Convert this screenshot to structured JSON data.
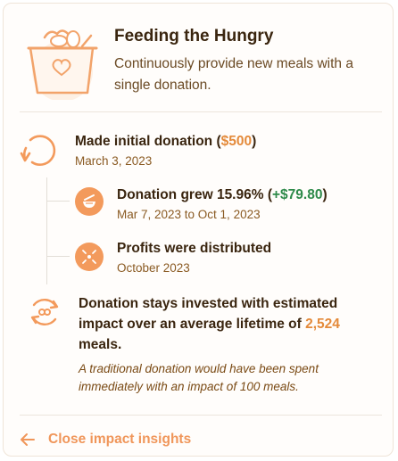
{
  "header": {
    "title": "Feeding the Hungry",
    "subtitle": "Continuously provide new meals with a single donation.",
    "illustration_icon": "food-basket-heart-icon"
  },
  "timeline": {
    "initial": {
      "title_prefix": "Made initial donation (",
      "amount": "$500",
      "title_suffix": ")",
      "date": "March 3, 2023",
      "icon": "cycle-arrow-icon"
    },
    "growth": {
      "title_prefix": "Donation grew 15.96% (",
      "gain": "+$79.80",
      "title_suffix": ")",
      "date": "Mar 7, 2023 to Oct 1, 2023",
      "icon": "growth-bowl-icon"
    },
    "profits": {
      "title": "Profits were distributed",
      "date": "October 2023",
      "icon": "distribution-icon"
    }
  },
  "impact": {
    "text_prefix": "Donation stays invested with estimated impact over an average lifetime of ",
    "meals_count": "2,524",
    "text_suffix": " meals.",
    "note": "A traditional donation would have been spent immediately with an impact of 100 meals.",
    "icon": "infinity-cycle-icon"
  },
  "footer": {
    "close_label": "Close impact insights",
    "icon": "arrow-left-icon"
  },
  "colors": {
    "accent": "#f39a5c",
    "accent_text": "#e48a3a",
    "positive": "#2e8a4a",
    "title": "#3a250f"
  }
}
